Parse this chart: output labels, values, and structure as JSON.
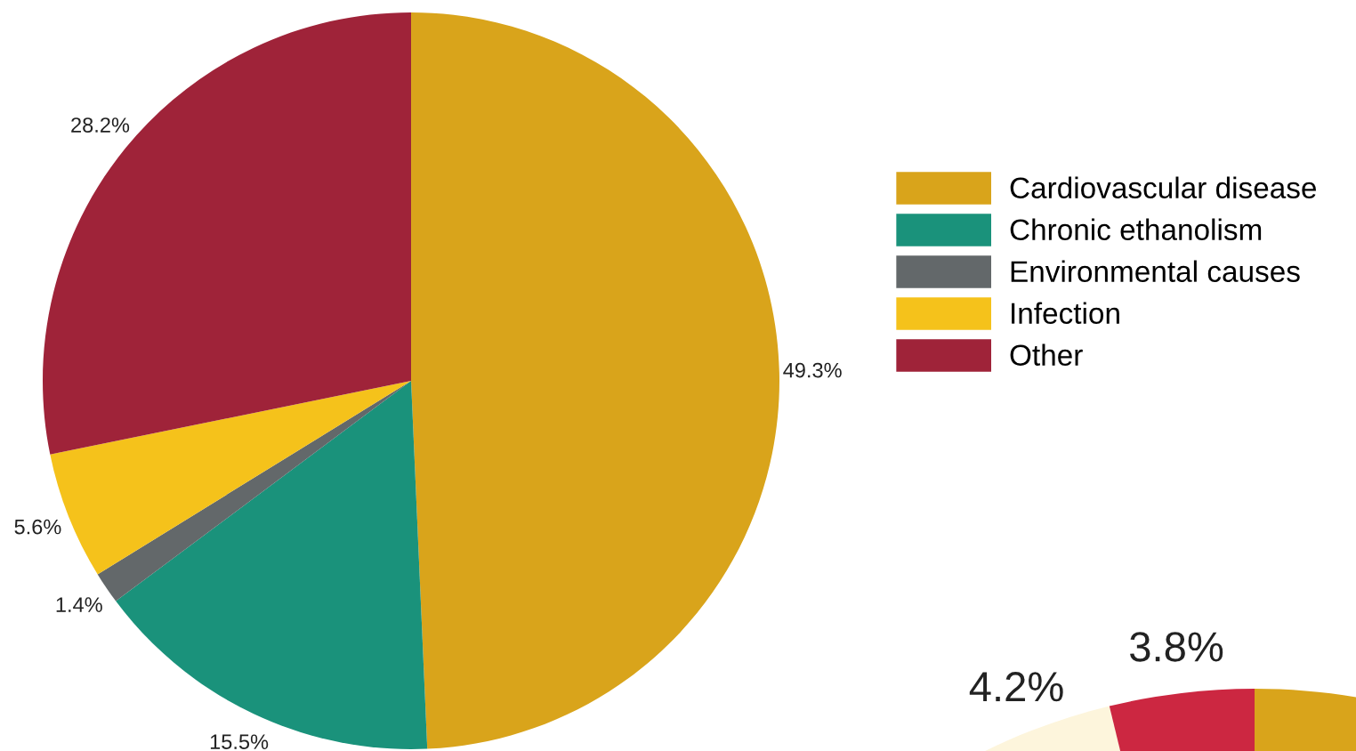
{
  "chart_data": [
    {
      "type": "pie",
      "categories": [
        "Cardiovascular disease",
        "Chronic ethanolism",
        "Environmental causes",
        "Infection",
        "Other"
      ],
      "values": [
        49.3,
        15.5,
        1.4,
        5.6,
        28.2
      ],
      "colors": [
        "#d9a41b",
        "#1a927b",
        "#63686a",
        "#f5c21b",
        "#9f2339"
      ],
      "value_labels": [
        "49.3%",
        "15.5%",
        "1.4%",
        "5.6%",
        "28.2%"
      ],
      "legend": "right"
    },
    {
      "type": "pie",
      "categories": [
        null,
        null,
        null
      ],
      "values": [
        92.0,
        4.2,
        3.8
      ],
      "colors": [
        "#d9a41b",
        "#fdf5dc",
        "#cc2741"
      ],
      "value_labels": [
        null,
        "4.2%",
        "3.8%"
      ]
    }
  ]
}
